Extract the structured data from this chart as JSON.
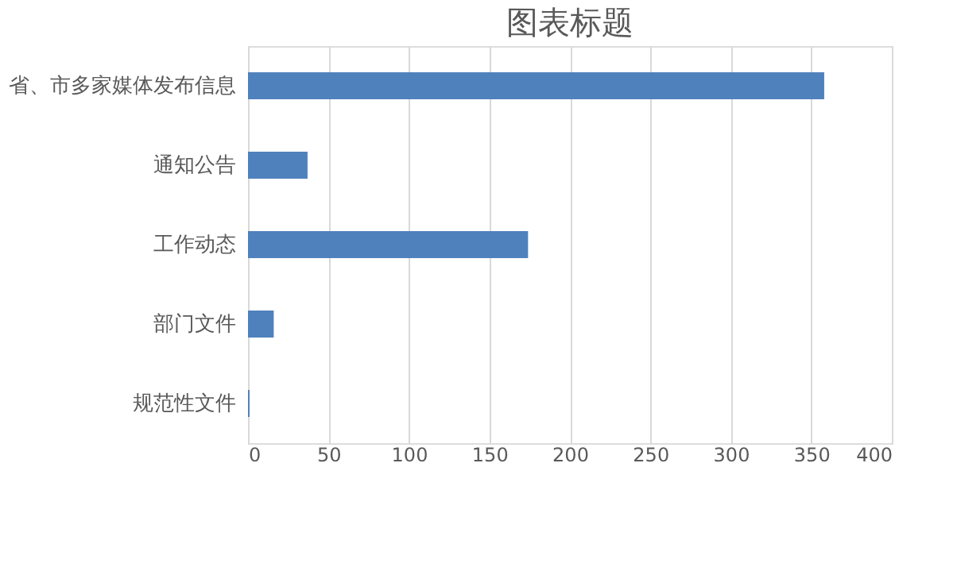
{
  "chart_data": {
    "type": "bar",
    "orientation": "horizontal",
    "title": "图表标题",
    "categories": [
      "省、市多家媒体发布信息",
      "通知公告",
      "工作动态",
      "部门文件",
      "规范性文件"
    ],
    "values": [
      358,
      37,
      174,
      16,
      1
    ],
    "color": "#4f81bd",
    "xlim": [
      0,
      400
    ],
    "xticks": [
      0,
      50,
      100,
      150,
      200,
      250,
      300,
      350,
      400
    ],
    "grid": "x"
  }
}
